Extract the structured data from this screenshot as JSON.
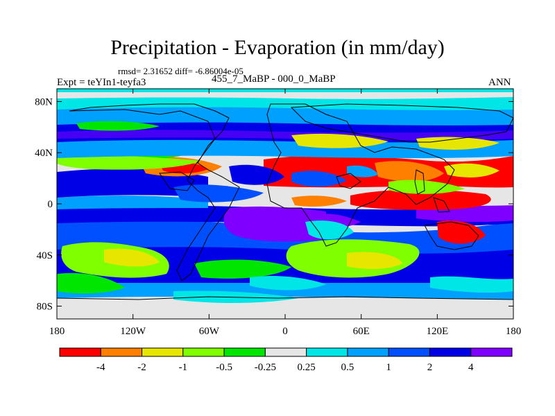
{
  "header": {
    "title": "Precipitation - Evaporation (in mm/day)",
    "stats": "rmsd= 2.31652 diff= -6.86004e-05",
    "experiment": "Expt = teYIn1-teyfa3",
    "period": "455_7_MaBP - 000_0_MaBP",
    "season": "ANN"
  },
  "map": {
    "lat_ticks": [
      {
        "value": 80,
        "label": "80N"
      },
      {
        "value": 40,
        "label": "40N"
      },
      {
        "value": 0,
        "label": "0"
      },
      {
        "value": -40,
        "label": "40S"
      },
      {
        "value": -80,
        "label": "80S"
      }
    ],
    "lon_ticks": [
      {
        "value": -180,
        "label": "180"
      },
      {
        "value": -120,
        "label": "120W"
      },
      {
        "value": -60,
        "label": "60W"
      },
      {
        "value": 0,
        "label": "0"
      },
      {
        "value": 60,
        "label": "60E"
      },
      {
        "value": 120,
        "label": "120E"
      },
      {
        "value": 180,
        "label": "180"
      }
    ]
  },
  "colorbar": {
    "colors": [
      "#ff0000",
      "#ff8000",
      "#e6e600",
      "#80ff00",
      "#00e600",
      "#e6e6e6",
      "#00e6e6",
      "#00a0ff",
      "#0050ff",
      "#0000e6",
      "#8000ff"
    ],
    "labels": [
      "-4",
      "-2",
      "-1",
      "-0.5",
      "-0.25",
      "0.25",
      "0.5",
      "1",
      "2",
      "4"
    ]
  }
}
